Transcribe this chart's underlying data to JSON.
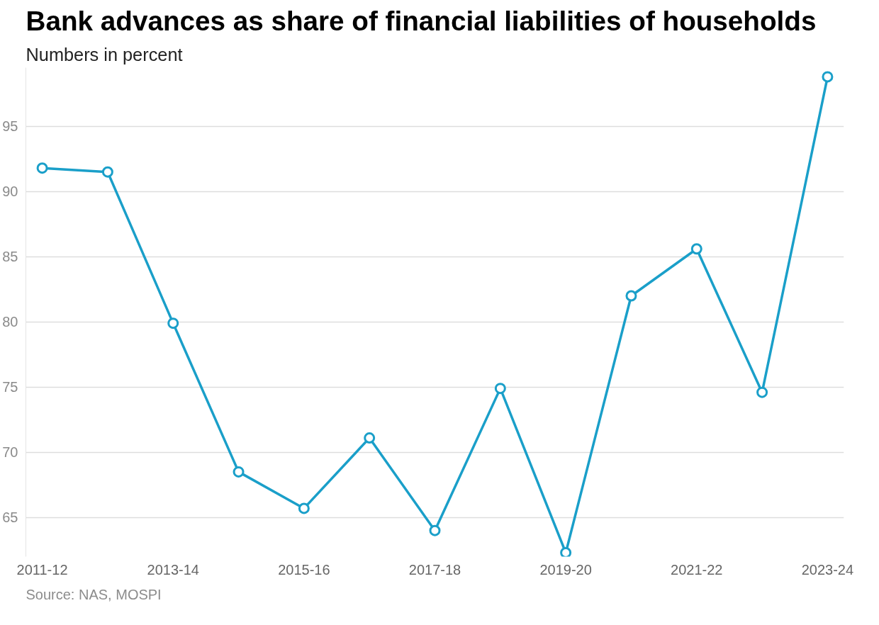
{
  "chart_data": {
    "type": "line",
    "title": "Bank advances as share of financial liabilities of households",
    "subtitle": "Numbers in percent",
    "categories": [
      "2011-12",
      null,
      "2013-14",
      null,
      "2015-16",
      null,
      "2017-18",
      null,
      "2019-20",
      null,
      "2021-22",
      null,
      "2023-24"
    ],
    "series": [
      {
        "color": "#1a9fc9",
        "values": [
          91.8,
          91.5,
          79.9,
          68.5,
          65.7,
          71.1,
          64.0,
          74.9,
          62.3,
          82.0,
          85.6,
          74.6,
          98.8
        ]
      }
    ],
    "ylim": [
      62,
      99.5
    ],
    "yticks": [
      65,
      70,
      75,
      80,
      85,
      90,
      95
    ],
    "grid": "y",
    "marker": "circle",
    "line_style": "solid",
    "annotations": [
      "Source: NAS, MOSPI"
    ]
  }
}
